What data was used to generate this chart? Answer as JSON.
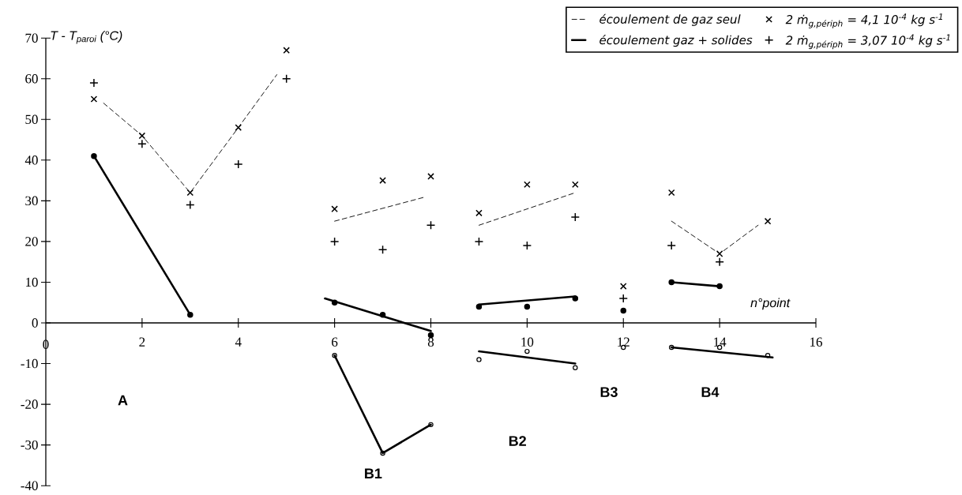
{
  "chart_data": {
    "type": "scatter",
    "ylabel": "T - T$_{paroi}$ (°C)",
    "xlabel": "n°point",
    "xlim": [
      0,
      16
    ],
    "xticks": [
      0,
      2,
      4,
      6,
      8,
      10,
      12,
      14,
      16
    ],
    "ylim": [
      -40,
      70
    ],
    "yticks": [
      -40,
      -30,
      -20,
      -10,
      0,
      10,
      20,
      30,
      40,
      50,
      60,
      70
    ],
    "legend": "top right",
    "series": [
      {
        "type": "line",
        "name": "écoulement de gaz seul",
        "line_style": "dashed",
        "color": "#000000",
        "x": [
          1.2,
          2,
          3,
          4,
          4.8,
          null,
          6,
          7.9,
          null,
          9,
          11,
          null,
          13,
          14,
          14.8
        ],
        "values": [
          54,
          46,
          32,
          48,
          61,
          null,
          25,
          31,
          null,
          24,
          32,
          null,
          25,
          17,
          24
        ]
      },
      {
        "type": "line",
        "name": "écoulement gaz + solides",
        "line_style": "solid",
        "color": "#000000",
        "x": [
          1,
          3,
          null,
          5.8,
          8,
          null,
          9,
          11,
          null,
          13,
          14
        ],
        "values": [
          41,
          2,
          null,
          6,
          -2,
          null,
          4.5,
          6.5,
          null,
          10,
          9
        ]
      },
      {
        "type": "line",
        "line_style": "solid",
        "color": "#000000",
        "x": [
          6,
          7,
          8,
          null,
          9,
          11,
          null,
          13,
          15.1
        ],
        "values": [
          -8,
          -32,
          -25,
          null,
          -7,
          -10,
          null,
          -6,
          -8.5
        ]
      },
      {
        "name": "2 ṁ$_{g,périph}$ = 4,1  10$^{-4}$  kg s$^{-1}$",
        "marker": "cross",
        "color": "#000000",
        "x": [
          1,
          2,
          3,
          4,
          5,
          6,
          7,
          8,
          9,
          10,
          11,
          12,
          13,
          14,
          15
        ],
        "values": [
          55,
          46,
          32,
          48,
          67,
          28,
          35,
          36,
          27,
          34,
          34,
          9,
          32,
          17,
          25
        ]
      },
      {
        "marker": "circle",
        "color": "#000000",
        "x": [
          6,
          7,
          8,
          9,
          10,
          11,
          12,
          13,
          14,
          15
        ],
        "values": [
          -8,
          -32,
          -25,
          -9,
          -7,
          -11,
          -6,
          -6,
          -6,
          -8
        ]
      },
      {
        "name": "2 ṁ$_{g,périph}$ = 3,07  10$^{-4}$  kg s$^{-1}$",
        "marker": "plus",
        "color": "#000000",
        "x": [
          1,
          2,
          3,
          4,
          5,
          6,
          7,
          8,
          9,
          10,
          11,
          12,
          13,
          14
        ],
        "values": [
          59,
          44,
          29,
          39,
          60,
          20,
          18,
          24,
          20,
          19,
          26,
          6,
          19,
          15
        ]
      },
      {
        "marker": "filled circle",
        "color": "#000000",
        "x": [
          1,
          3,
          6,
          7,
          8,
          9,
          10,
          11,
          12,
          13,
          14
        ],
        "values": [
          41,
          2,
          5,
          2,
          -3,
          4,
          4,
          6,
          3,
          10,
          9
        ]
      }
    ],
    "annotations": [
      "A",
      "B1",
      "B2",
      "B3",
      "B4"
    ]
  }
}
